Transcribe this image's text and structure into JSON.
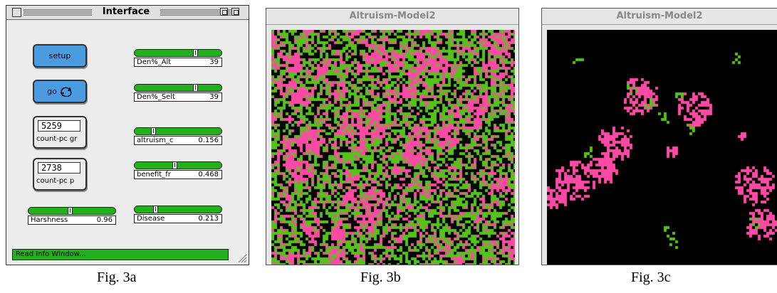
{
  "interface": {
    "title": "Interface",
    "buttons": {
      "setup": "setup",
      "go": "go"
    },
    "monitors": [
      {
        "value": "5259",
        "label": "count-pc gr"
      },
      {
        "value": "2738",
        "label": "count-pc p"
      }
    ],
    "sliders": [
      {
        "name": "Den%_Alt",
        "value": "39",
        "fraction": 0.72
      },
      {
        "name": "Den%_Selt",
        "value": "39",
        "fraction": 0.72
      },
      {
        "name": "altruism_c",
        "value": "0.156",
        "fraction": 0.18
      },
      {
        "name": "benefit_fr",
        "value": "0.468",
        "fraction": 0.45
      },
      {
        "name": "Harshness",
        "value": "0.96",
        "fraction": 0.47
      },
      {
        "name": "Disease",
        "value": "0.213",
        "fraction": 0.21
      }
    ],
    "info_bar": "Read Info Window..."
  },
  "model_windows": [
    {
      "title": "Altruism-Model2"
    },
    {
      "title": "Altruism-Model2"
    }
  ],
  "colors": {
    "pink": "#ff4aa5",
    "green": "#55c21a",
    "black": "#000000",
    "button_blue": "#4b9be0",
    "slider_green": "#22b01e"
  },
  "captions": [
    "Fig. 3a",
    "Fig. 3b",
    "Fig. 3c"
  ]
}
